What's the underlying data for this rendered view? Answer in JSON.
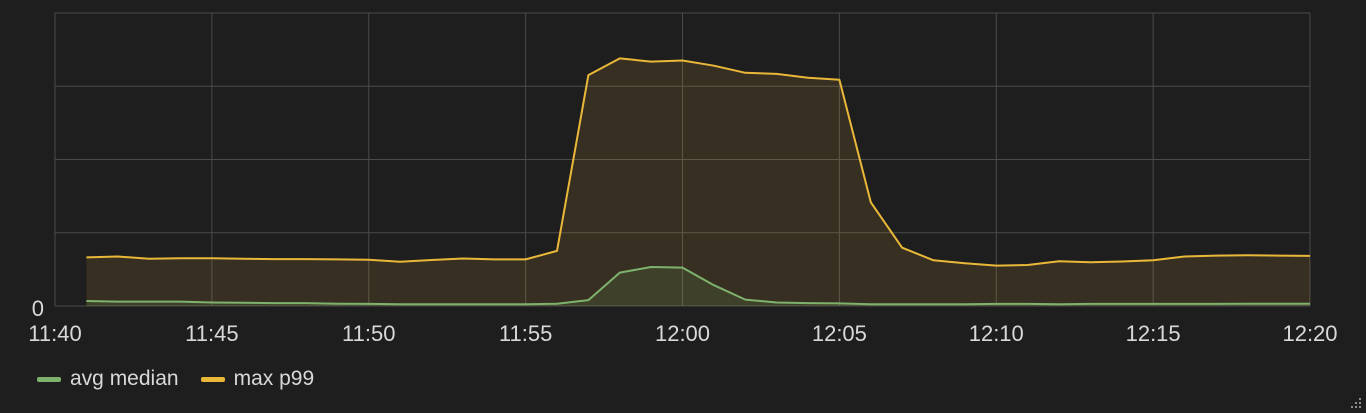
{
  "chart_data": {
    "type": "area",
    "xlabel": "",
    "ylabel": "",
    "y_ticks": [
      "0"
    ],
    "ylim": [
      0,
      100
    ],
    "grid": true,
    "legend_position": "bottom-left",
    "x_tick_labels": [
      "11:40",
      "11:45",
      "11:50",
      "11:55",
      "12:00",
      "12:05",
      "12:10",
      "12:15",
      "12:20"
    ],
    "x_range_minutes": [
      0,
      40
    ],
    "x_minutes": [
      1,
      2,
      3,
      4,
      5,
      6,
      7,
      8,
      9,
      10,
      11,
      12,
      13,
      14,
      15,
      16,
      17,
      18,
      19,
      20,
      21,
      22,
      23,
      24,
      25,
      26,
      27,
      28,
      29,
      30,
      31,
      32,
      33,
      34,
      35,
      36,
      37,
      38,
      39,
      40
    ],
    "series": [
      {
        "name": "max p99",
        "color": "#eab839",
        "values": [
          16.6,
          16.9,
          16.1,
          16.3,
          16.3,
          16.1,
          16.0,
          16.0,
          15.9,
          15.8,
          15.1,
          15.7,
          16.2,
          15.9,
          15.9,
          18.8,
          78.8,
          84.5,
          83.4,
          83.8,
          82.0,
          79.6,
          79.2,
          77.9,
          77.2,
          35.4,
          19.9,
          15.6,
          14.6,
          13.8,
          14.0,
          15.3,
          14.9,
          15.2,
          15.6,
          16.9,
          17.2,
          17.3,
          17.2,
          17.1
        ],
        "fill_opacity": 0.12
      },
      {
        "name": "avg median",
        "color": "#7eb26d",
        "values": [
          1.7,
          1.5,
          1.5,
          1.5,
          1.2,
          1.1,
          1.0,
          1.0,
          0.8,
          0.7,
          0.6,
          0.6,
          0.6,
          0.6,
          0.6,
          0.8,
          2.0,
          11.4,
          13.3,
          13.1,
          7.1,
          2.2,
          1.2,
          1.0,
          0.9,
          0.6,
          0.6,
          0.6,
          0.6,
          0.7,
          0.7,
          0.6,
          0.7,
          0.7,
          0.7,
          0.7,
          0.7,
          0.8,
          0.8,
          0.8
        ],
        "fill_opacity": 0.12
      }
    ]
  },
  "legend": {
    "items": [
      {
        "name": "avg median",
        "color": "#7eb26d"
      },
      {
        "name": "max p99",
        "color": "#eab839"
      }
    ]
  },
  "colors": {
    "background": "#1f1e1f",
    "grid": "#4a4a4a",
    "tick_text": "#d8d9da"
  }
}
